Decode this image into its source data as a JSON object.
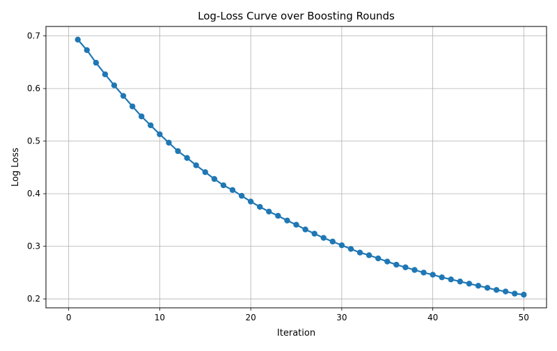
{
  "chart_data": {
    "type": "line",
    "title": "Log-Loss Curve over Boosting Rounds",
    "xlabel": "Iteration",
    "ylabel": "Log Loss",
    "xlim": [
      -2.5,
      52.5
    ],
    "ylim": [
      0.183,
      0.718
    ],
    "xticks": [
      0,
      10,
      20,
      30,
      40,
      50
    ],
    "yticks": [
      0.2,
      0.3,
      0.4,
      0.5,
      0.6,
      0.7
    ],
    "xtick_labels": [
      "0",
      "10",
      "20",
      "30",
      "40",
      "50"
    ],
    "ytick_labels": [
      "0.2",
      "0.3",
      "0.4",
      "0.5",
      "0.6",
      "0.7"
    ],
    "grid": true,
    "series": [
      {
        "color": "#1f77b4",
        "marker": "circle",
        "x": [
          1,
          2,
          3,
          4,
          5,
          6,
          7,
          8,
          9,
          10,
          11,
          12,
          13,
          14,
          15,
          16,
          17,
          18,
          19,
          20,
          21,
          22,
          23,
          24,
          25,
          26,
          27,
          28,
          29,
          30,
          31,
          32,
          33,
          34,
          35,
          36,
          37,
          38,
          39,
          40,
          41,
          42,
          43,
          44,
          45,
          46,
          47,
          48,
          49,
          50
        ],
        "values": [
          0.693,
          0.673,
          0.649,
          0.627,
          0.606,
          0.586,
          0.566,
          0.547,
          0.53,
          0.513,
          0.497,
          0.481,
          0.468,
          0.454,
          0.441,
          0.428,
          0.416,
          0.407,
          0.396,
          0.385,
          0.375,
          0.366,
          0.358,
          0.349,
          0.341,
          0.332,
          0.324,
          0.316,
          0.309,
          0.302,
          0.295,
          0.288,
          0.283,
          0.277,
          0.271,
          0.265,
          0.26,
          0.255,
          0.25,
          0.246,
          0.241,
          0.237,
          0.233,
          0.229,
          0.225,
          0.221,
          0.217,
          0.214,
          0.21,
          0.208
        ]
      }
    ]
  }
}
